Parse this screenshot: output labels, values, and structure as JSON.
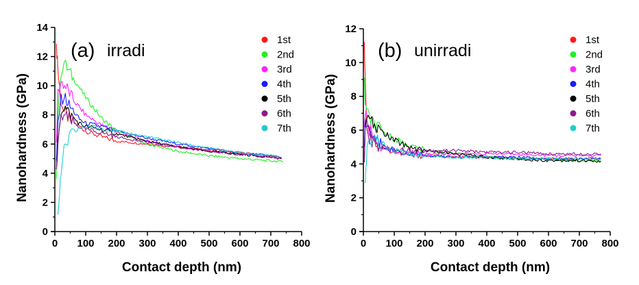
{
  "chart_data": [
    {
      "type": "line",
      "panel_tag": "(a)",
      "title": "irradi",
      "xlabel": "Contact depth (nm)",
      "ylabel": "Nanohardness (GPa)",
      "xlim": [
        0,
        800
      ],
      "ylim": [
        0,
        14
      ],
      "xticks": [
        0,
        100,
        200,
        300,
        400,
        500,
        600,
        700,
        800
      ],
      "yticks": [
        0,
        2,
        4,
        6,
        8,
        10,
        12,
        14
      ],
      "grid": false,
      "legend_position": "top-right",
      "series": [
        {
          "name": "1st",
          "color": "#ff1a1a",
          "x": [
            5,
            8,
            12,
            20,
            30,
            50,
            80,
            100,
            150,
            200,
            300,
            400,
            500,
            600,
            700,
            735
          ],
          "y": [
            12.5,
            12.0,
            10.5,
            9.0,
            8.2,
            7.6,
            7.2,
            6.9,
            6.5,
            6.2,
            6.0,
            5.8,
            5.6,
            5.4,
            5.2,
            5.1
          ]
        },
        {
          "name": "2nd",
          "color": "#22ee22",
          "x": [
            5,
            10,
            20,
            30,
            40,
            60,
            100,
            150,
            200,
            300,
            400,
            500,
            600,
            700,
            740
          ],
          "y": [
            4.0,
            8.0,
            11.0,
            11.6,
            11.2,
            10.5,
            9.2,
            7.8,
            6.9,
            6.0,
            5.5,
            5.2,
            5.0,
            4.85,
            4.8
          ]
        },
        {
          "name": "3rd",
          "color": "#ff22ff",
          "x": [
            5,
            10,
            20,
            40,
            60,
            100,
            150,
            200,
            300,
            400,
            500,
            600,
            700,
            735
          ],
          "y": [
            6.0,
            9.5,
            10.3,
            9.8,
            9.0,
            8.0,
            7.3,
            6.8,
            6.2,
            5.8,
            5.5,
            5.3,
            5.1,
            5.0
          ]
        },
        {
          "name": "4th",
          "color": "#1a1aff",
          "x": [
            5,
            10,
            20,
            30,
            50,
            80,
            100,
            150,
            200,
            300,
            400,
            500,
            600,
            700,
            735
          ],
          "y": [
            4.5,
            7.5,
            9.0,
            9.3,
            8.5,
            7.7,
            7.4,
            7.2,
            6.9,
            6.4,
            6.0,
            5.7,
            5.4,
            5.2,
            5.1
          ]
        },
        {
          "name": "5th",
          "color": "#000000",
          "x": [
            5,
            10,
            20,
            30,
            50,
            80,
            100,
            150,
            200,
            300,
            400,
            500,
            600,
            700,
            735
          ],
          "y": [
            4.0,
            6.5,
            8.3,
            8.6,
            8.0,
            7.4,
            7.2,
            7.0,
            6.7,
            6.2,
            5.8,
            5.5,
            5.3,
            5.1,
            5.0
          ]
        },
        {
          "name": "6th",
          "color": "#8b1a8b",
          "x": [
            5,
            10,
            20,
            30,
            50,
            80,
            100,
            150,
            200,
            300,
            400,
            500,
            600,
            700,
            735
          ],
          "y": [
            4.0,
            6.0,
            7.8,
            8.0,
            7.6,
            7.2,
            7.0,
            6.8,
            6.5,
            6.1,
            5.8,
            5.5,
            5.3,
            5.1,
            5.0
          ]
        },
        {
          "name": "7th",
          "color": "#22cccc",
          "x": [
            10,
            15,
            20,
            30,
            50,
            80,
            100,
            150,
            200,
            300,
            400,
            500,
            600,
            700,
            735
          ],
          "y": [
            1.5,
            2.5,
            4.0,
            5.5,
            6.6,
            7.1,
            7.2,
            7.1,
            6.9,
            6.5,
            6.1,
            5.7,
            5.4,
            5.2,
            5.1
          ]
        }
      ]
    },
    {
      "type": "line",
      "panel_tag": "(b)",
      "title": "unirradi",
      "xlabel": "Contact depth (nm)",
      "ylabel": "Nanohardness (GPa)",
      "xlim": [
        0,
        800
      ],
      "ylim": [
        0,
        12
      ],
      "xticks": [
        0,
        100,
        200,
        300,
        400,
        500,
        600,
        700,
        800
      ],
      "yticks": [
        0,
        2,
        4,
        6,
        8,
        10,
        12
      ],
      "grid": false,
      "legend_position": "top-right",
      "series": [
        {
          "name": "1st",
          "color": "#ff1a1a",
          "x": [
            3,
            6,
            10,
            20,
            40,
            60,
            100,
            150,
            200,
            300,
            400,
            500,
            600,
            700,
            770
          ],
          "y": [
            11.5,
            9.0,
            7.0,
            6.0,
            5.3,
            5.0,
            4.7,
            4.5,
            4.5,
            4.4,
            4.4,
            4.3,
            4.3,
            4.3,
            4.3
          ]
        },
        {
          "name": "2nd",
          "color": "#22ee22",
          "x": [
            3,
            6,
            10,
            20,
            40,
            60,
            100,
            150,
            200,
            300,
            400,
            500,
            600,
            700,
            770
          ],
          "y": [
            9.0,
            7.5,
            7.0,
            6.7,
            6.2,
            5.9,
            5.5,
            5.1,
            4.8,
            4.6,
            4.4,
            4.3,
            4.3,
            4.2,
            4.2
          ]
        },
        {
          "name": "3rd",
          "color": "#ff22ff",
          "x": [
            3,
            6,
            10,
            20,
            40,
            60,
            100,
            150,
            200,
            300,
            400,
            500,
            600,
            700,
            770
          ],
          "y": [
            6.0,
            7.0,
            6.6,
            6.0,
            5.4,
            5.0,
            4.8,
            4.7,
            4.6,
            4.6,
            4.6,
            4.6,
            4.5,
            4.5,
            4.5
          ]
        },
        {
          "name": "4th",
          "color": "#1a1aff",
          "x": [
            3,
            6,
            10,
            20,
            40,
            60,
            100,
            150,
            200,
            300,
            400,
            500,
            600,
            700,
            770
          ],
          "y": [
            5.0,
            6.5,
            6.4,
            5.9,
            5.4,
            5.1,
            4.8,
            4.6,
            4.5,
            4.4,
            4.4,
            4.4,
            4.3,
            4.3,
            4.3
          ]
        },
        {
          "name": "5th",
          "color": "#000000",
          "x": [
            3,
            6,
            10,
            20,
            40,
            60,
            100,
            150,
            200,
            300,
            400,
            500,
            600,
            700,
            770
          ],
          "y": [
            4.5,
            6.0,
            6.6,
            6.5,
            6.2,
            5.9,
            5.4,
            5.0,
            4.8,
            4.6,
            4.4,
            4.3,
            4.2,
            4.2,
            4.15
          ]
        },
        {
          "name": "6th",
          "color": "#8b1a8b",
          "x": [
            3,
            6,
            10,
            20,
            40,
            60,
            100,
            150,
            200,
            300,
            400,
            500,
            600,
            700,
            770
          ],
          "y": [
            4.5,
            6.0,
            6.0,
            5.6,
            5.2,
            5.0,
            4.9,
            4.8,
            4.8,
            4.8,
            4.7,
            4.7,
            4.6,
            4.6,
            4.6
          ]
        },
        {
          "name": "7th",
          "color": "#22cccc",
          "x": [
            5,
            8,
            12,
            20,
            30,
            50,
            80,
            100,
            150,
            200,
            300,
            400,
            500,
            600,
            700,
            770
          ],
          "y": [
            2.5,
            3.5,
            4.8,
            5.4,
            5.6,
            5.3,
            5.0,
            4.8,
            4.6,
            4.5,
            4.4,
            4.4,
            4.3,
            4.3,
            4.3,
            4.3
          ]
        }
      ]
    }
  ]
}
